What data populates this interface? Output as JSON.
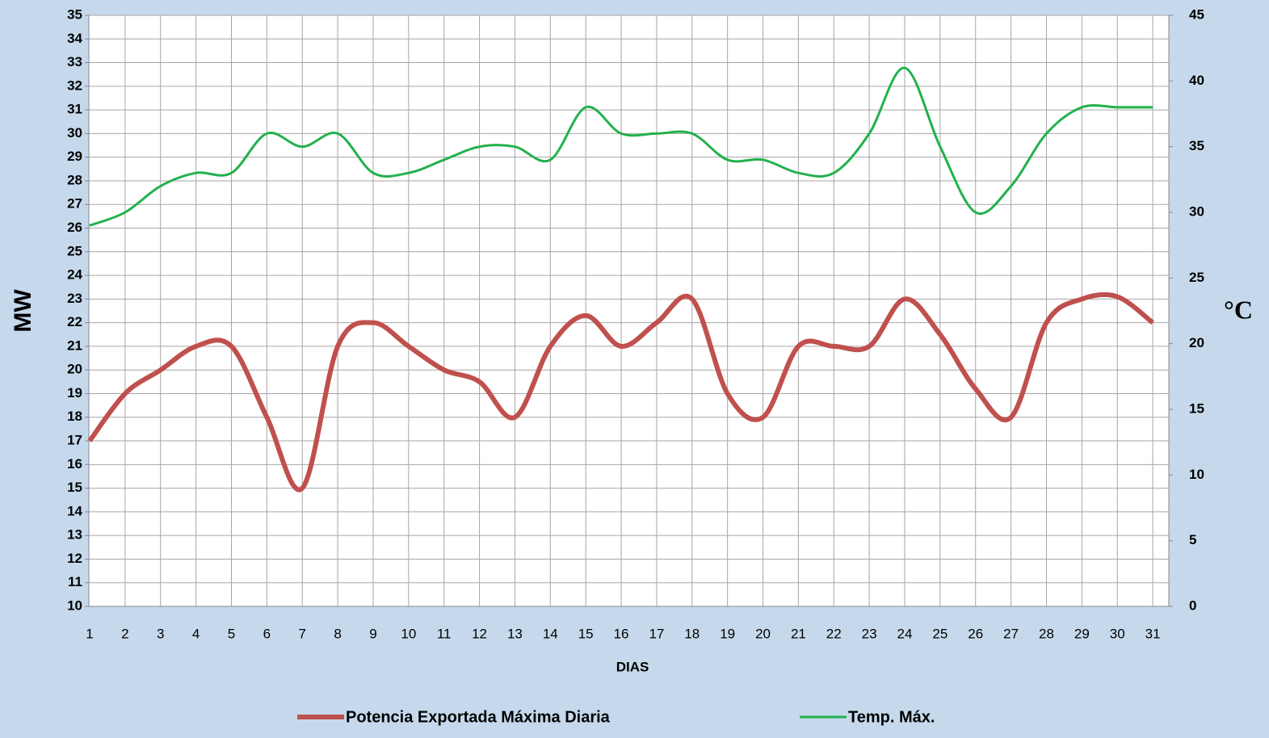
{
  "chart_data": {
    "type": "line",
    "x_label": "DIAS",
    "y_label": "MW",
    "y2_label": "°C",
    "categories": [
      "1",
      "2",
      "3",
      "4",
      "5",
      "6",
      "7",
      "8",
      "9",
      "10",
      "11",
      "12",
      "13",
      "14",
      "15",
      "16",
      "17",
      "18",
      "19",
      "20",
      "21",
      "22",
      "23",
      "24",
      "25",
      "26",
      "27",
      "28",
      "29",
      "30",
      "31"
    ],
    "series": [
      {
        "name": "Potencia Exportada Máxima Diaria",
        "color": "#c0504d",
        "values": [
          17,
          19,
          20,
          21,
          21,
          18,
          15,
          21,
          22,
          21,
          20,
          19.5,
          18,
          21,
          22.3,
          21,
          22,
          23,
          19,
          18,
          21,
          21,
          21,
          23,
          21.5,
          19.2,
          18,
          22,
          23,
          23.1,
          22
        ]
      },
      {
        "name": "Temp. Máx.",
        "color": "#22b14c",
        "axis": "y2",
        "values": [
          29,
          30,
          32,
          33,
          33,
          36,
          35,
          36,
          33,
          33,
          34,
          35,
          35,
          34,
          38,
          36,
          36,
          36,
          34,
          34,
          33,
          33,
          36,
          41,
          35,
          30,
          32,
          36,
          38,
          38,
          38
        ]
      }
    ],
    "ylim": [
      10,
      35
    ],
    "yticks": [
      10,
      11,
      12,
      13,
      14,
      15,
      16,
      17,
      18,
      19,
      20,
      21,
      22,
      23,
      24,
      25,
      26,
      27,
      28,
      29,
      30,
      31,
      32,
      33,
      34,
      35
    ],
    "y2lim": [
      0,
      45
    ],
    "y2ticks": [
      0,
      5,
      10,
      15,
      20,
      25,
      30,
      35,
      40,
      45
    ],
    "grid": true,
    "smooth": true,
    "legend": "bottom"
  }
}
